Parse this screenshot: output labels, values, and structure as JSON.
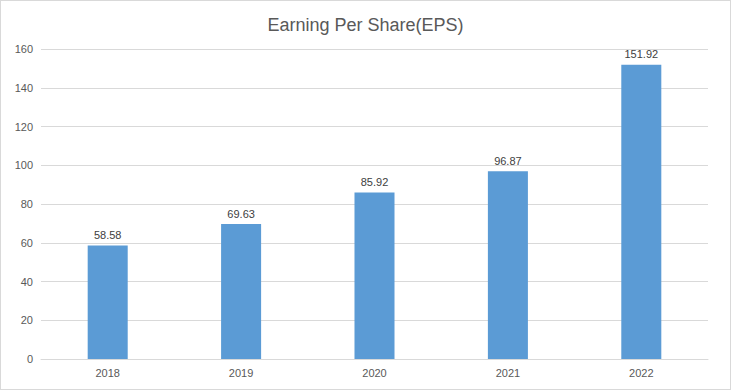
{
  "chart_data": {
    "type": "bar",
    "title": "Earning Per Share(EPS)",
    "categories": [
      "2018",
      "2019",
      "2020",
      "2021",
      "2022"
    ],
    "values": [
      58.58,
      69.63,
      85.92,
      96.87,
      151.92
    ],
    "color": "#5b9bd5",
    "ylim": [
      0,
      160
    ],
    "yticks": [
      0,
      20,
      40,
      60,
      80,
      100,
      120,
      140,
      160
    ],
    "grid": true,
    "data_labels": true
  }
}
